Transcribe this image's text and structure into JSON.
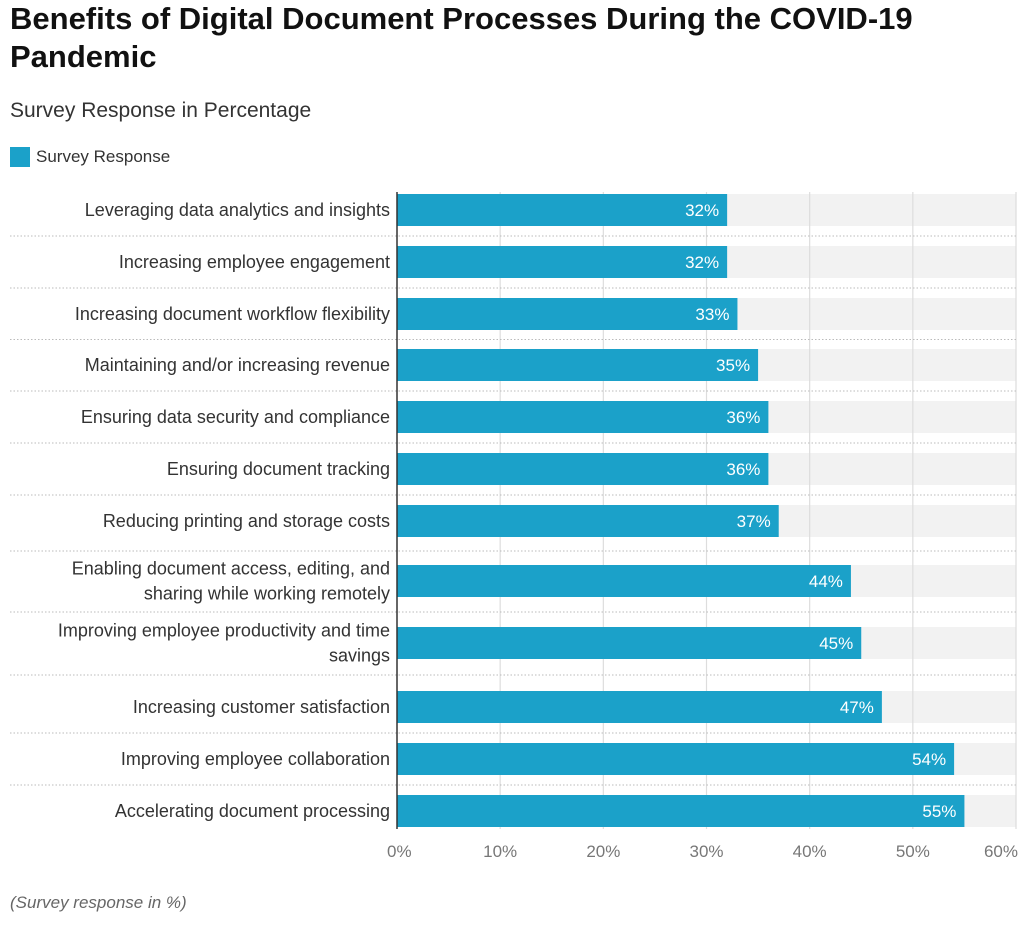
{
  "chart_data": {
    "type": "bar",
    "orientation": "horizontal",
    "title": "Benefits of Digital Document Processes During the COVID-19 Pandemic",
    "subtitle": "Survey Response in Percentage",
    "footnote": "(Survey response in %)",
    "categories": [
      [
        "Leveraging data analytics and insights"
      ],
      [
        "Increasing employee engagement"
      ],
      [
        "Increasing document workflow flexibility"
      ],
      [
        "Maintaining and/or increasing revenue"
      ],
      [
        "Ensuring data security and compliance"
      ],
      [
        "Ensuring document tracking"
      ],
      [
        "Reducing printing and storage costs"
      ],
      [
        "Enabling document access, editing, and",
        "sharing while working remotely"
      ],
      [
        "Improving employee productivity and time",
        "savings"
      ],
      [
        "Increasing customer satisfaction"
      ],
      [
        "Improving employee collaboration"
      ],
      [
        "Accelerating document processing"
      ]
    ],
    "series": [
      {
        "name": "Survey Response",
        "values": [
          32,
          32,
          33,
          35,
          36,
          36,
          37,
          44,
          45,
          47,
          54,
          55
        ],
        "color": "#1ba1c9"
      }
    ],
    "data_labels": [
      "32%",
      "32%",
      "33%",
      "35%",
      "36%",
      "36%",
      "37%",
      "44%",
      "45%",
      "47%",
      "54%",
      "55%"
    ],
    "xlim": [
      0,
      60
    ],
    "xticks": [
      "0%",
      "10%",
      "20%",
      "30%",
      "40%",
      "50%",
      "60%"
    ],
    "grid": true,
    "legend_position": "top-left",
    "colors": {
      "bar": "#1ba1c9",
      "band": "#f2f2f2",
      "grid": "#dddddd"
    }
  }
}
